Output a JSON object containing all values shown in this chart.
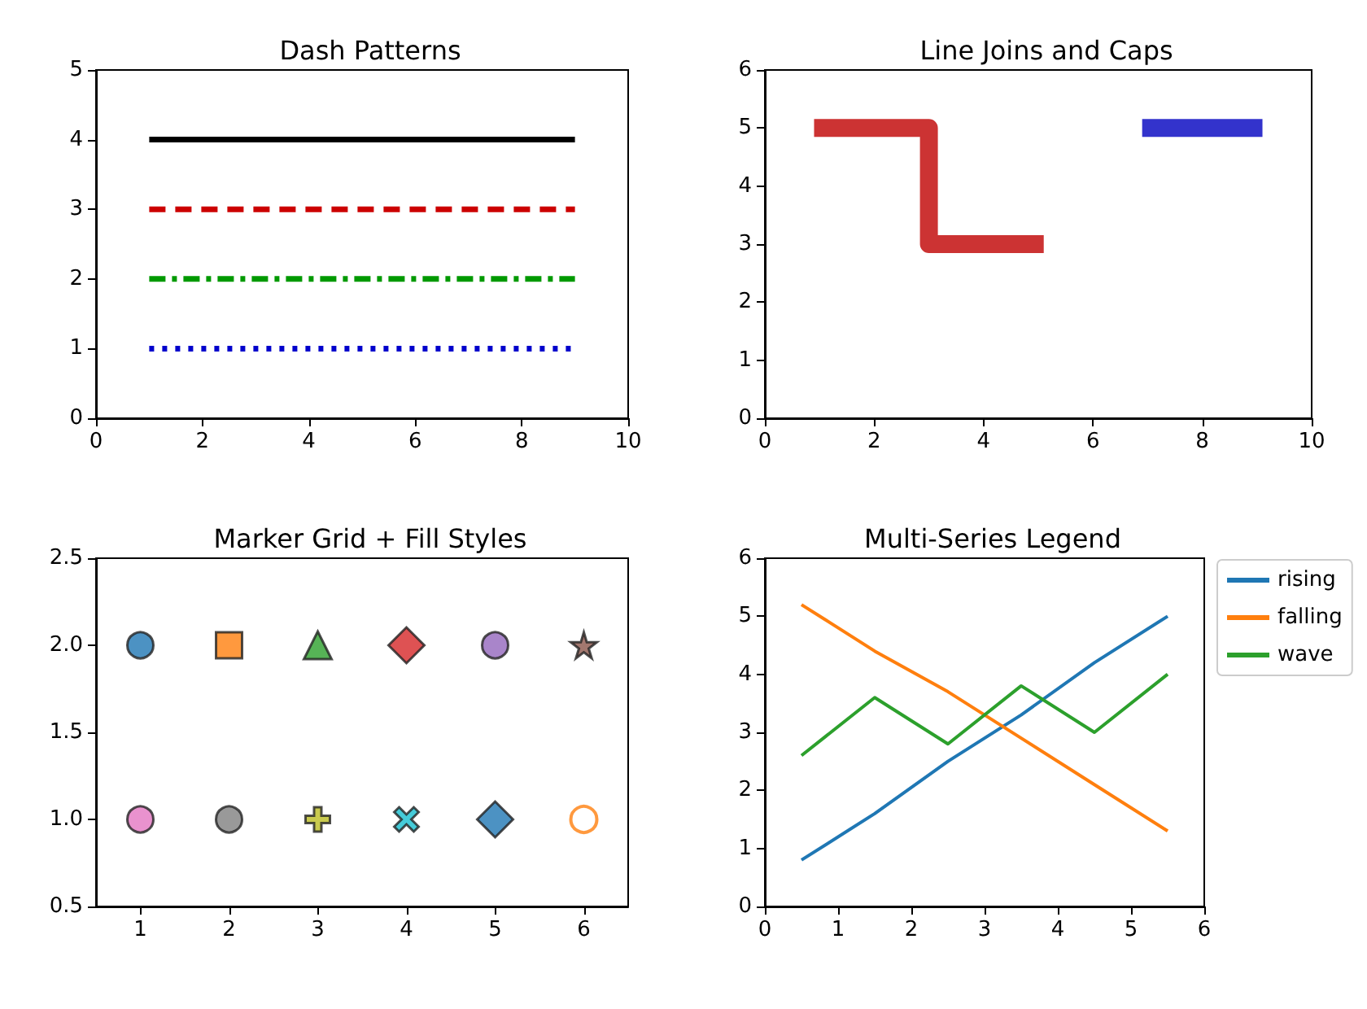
{
  "chart_data": [
    {
      "type": "line",
      "title": "Dash Patterns",
      "xlim": [
        0,
        10
      ],
      "xticks": [
        0,
        2,
        4,
        6,
        8,
        10
      ],
      "ylim": [
        0,
        5
      ],
      "yticks": [
        0,
        1,
        2,
        3,
        4,
        5
      ],
      "series": [
        {
          "color": "#000000",
          "line_style": "solid",
          "x": [
            1,
            9
          ],
          "values": [
            4,
            4
          ]
        },
        {
          "color": "#cc0000",
          "line_style": "dashed",
          "x": [
            1,
            9
          ],
          "values": [
            3,
            3
          ]
        },
        {
          "color": "#009900",
          "line_style": "dashdot",
          "x": [
            1,
            9
          ],
          "values": [
            2,
            2
          ]
        },
        {
          "color": "#0000cc",
          "line_style": "dotted",
          "x": [
            1,
            9
          ],
          "values": [
            1,
            1
          ]
        }
      ]
    },
    {
      "type": "line",
      "title": "Line Joins and Caps",
      "xlim": [
        0,
        10
      ],
      "xticks": [
        0,
        2,
        4,
        6,
        8,
        10
      ],
      "ylim": [
        0,
        6
      ],
      "yticks": [
        0,
        1,
        2,
        3,
        4,
        5,
        6
      ],
      "series": [
        {
          "color": "#cc3333",
          "x": [
            0.9,
            3,
            3,
            5.1
          ],
          "values": [
            5,
            5,
            3,
            3
          ]
        },
        {
          "color": "#3333cc",
          "x": [
            6.9,
            9.1
          ],
          "values": [
            5,
            5
          ]
        }
      ]
    },
    {
      "type": "scatter",
      "title": "Marker Grid + Fill Styles",
      "xlim": [
        0.5,
        6.5
      ],
      "xticks": [
        1,
        2,
        3,
        4,
        5,
        6
      ],
      "ylim": [
        0.5,
        2.5
      ],
      "yticks": [
        {
          "value": 0.5,
          "label": "0.5"
        },
        {
          "value": 1,
          "label": "1.0"
        },
        {
          "value": 1.5,
          "label": "1.5"
        },
        {
          "value": 2,
          "label": "2.0"
        },
        {
          "value": 2.5,
          "label": "2.5"
        }
      ],
      "series": [
        {
          "color": "#1f77b4",
          "marker": "circle",
          "x": [
            1
          ],
          "values": [
            2
          ]
        },
        {
          "color": "#ff7f0e",
          "marker": "square",
          "x": [
            2
          ],
          "values": [
            2
          ]
        },
        {
          "color": "#2ca02c",
          "marker": "triangle",
          "x": [
            3
          ],
          "values": [
            2
          ]
        },
        {
          "color": "#d62728",
          "marker": "diamond",
          "x": [
            4
          ],
          "values": [
            2
          ]
        },
        {
          "color": "#9467bd",
          "marker": "circle",
          "x": [
            5
          ],
          "values": [
            2
          ]
        },
        {
          "color": "#8c564b",
          "marker": "star",
          "x": [
            6
          ],
          "values": [
            2
          ]
        },
        {
          "color": "#e377c2",
          "marker": "circle",
          "x": [
            1
          ],
          "values": [
            1
          ]
        },
        {
          "color": "#7f7f7f",
          "marker": "circle",
          "x": [
            2
          ],
          "values": [
            1
          ]
        },
        {
          "color": "#bcbd22",
          "marker": "plus",
          "x": [
            3
          ],
          "values": [
            1
          ]
        },
        {
          "color": "#17becf",
          "marker": "x",
          "x": [
            4
          ],
          "values": [
            1
          ]
        },
        {
          "color": "#1f77b4",
          "marker": "diamond",
          "x": [
            5
          ],
          "values": [
            1
          ]
        },
        {
          "color": "#ff7f0e",
          "marker": "open_circle",
          "x": [
            6
          ],
          "values": [
            1
          ]
        }
      ]
    },
    {
      "type": "line",
      "title": "Multi-Series Legend",
      "legend": "top right",
      "xlim": [
        0,
        6
      ],
      "xticks": [
        0,
        1,
        2,
        3,
        4,
        5,
        6
      ],
      "ylim": [
        0,
        6
      ],
      "yticks": [
        0,
        1,
        2,
        3,
        4,
        5,
        6
      ],
      "x": [
        0.5,
        1.5,
        2.5,
        3.5,
        4.5,
        5.5
      ],
      "series": [
        {
          "name": "rising",
          "color": "#1f77b4",
          "values": [
            0.8,
            1.6,
            2.5,
            3.3,
            4.2,
            5.0
          ]
        },
        {
          "name": "falling",
          "color": "#ff7f0e",
          "values": [
            5.2,
            4.4,
            3.7,
            2.9,
            2.1,
            1.3
          ]
        },
        {
          "name": "wave",
          "color": "#2ca02c",
          "values": [
            2.6,
            3.6,
            2.8,
            3.8,
            3.0,
            4.0
          ]
        }
      ]
    }
  ]
}
